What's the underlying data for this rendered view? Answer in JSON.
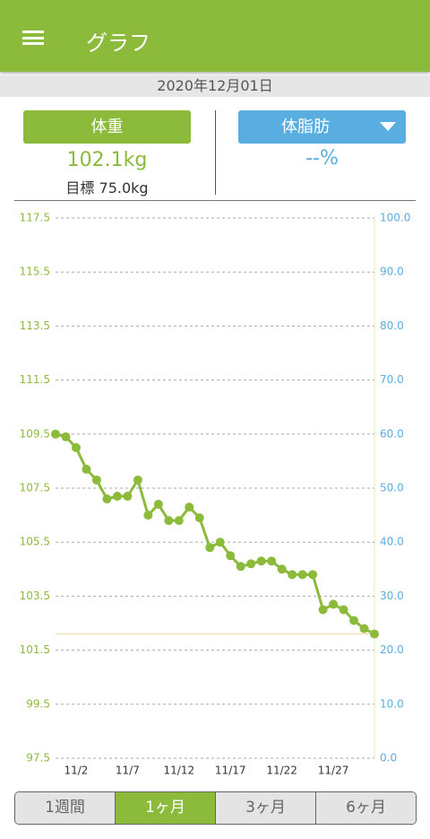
{
  "header": {
    "title": "グラフ"
  },
  "date": "2020年12月01日",
  "cards": [
    {
      "button": "体重",
      "value": "102.1kg",
      "target": "目標 75.0kg"
    },
    {
      "button": "体脂肪",
      "value": "--%"
    }
  ],
  "chart_data": {
    "type": "line",
    "categories": [
      null,
      null,
      "11/2",
      null,
      null,
      null,
      null,
      "11/7",
      null,
      null,
      null,
      null,
      "11/12",
      null,
      null,
      null,
      null,
      "11/17",
      null,
      null,
      null,
      null,
      "11/22",
      null,
      null,
      null,
      null,
      "11/27",
      null,
      null,
      null,
      null
    ],
    "values": [
      109.5,
      109.4,
      109.0,
      108.2,
      107.8,
      107.1,
      107.2,
      107.2,
      107.8,
      106.5,
      106.9,
      106.3,
      106.3,
      106.8,
      106.4,
      105.3,
      105.5,
      105.0,
      104.6,
      104.7,
      104.8,
      104.8,
      104.5,
      104.3,
      104.3,
      104.3,
      103.0,
      103.2,
      103.0,
      102.6,
      102.3,
      102.1
    ],
    "color": "#8cbb3c",
    "ylim": [
      97.5,
      117.5
    ],
    "yticks": [
      97.5,
      99.5,
      101.5,
      103.5,
      105.5,
      107.5,
      109.5,
      111.5,
      113.5,
      115.5,
      117.5
    ],
    "y2lim": [
      0,
      100
    ],
    "y2ticks": [
      {
        "value": 0,
        "label": "0.0"
      },
      {
        "value": 10,
        "label": "10.0"
      },
      {
        "value": 20,
        "label": "20.0"
      },
      {
        "value": 30,
        "label": "30.0"
      },
      {
        "value": 40,
        "label": "40.0"
      },
      {
        "value": 50,
        "label": "50.0"
      },
      {
        "value": 60,
        "label": "60.0"
      },
      {
        "value": 70,
        "label": "70.0"
      },
      {
        "value": 80,
        "label": "80.0"
      },
      {
        "value": 90,
        "label": "90.0"
      },
      {
        "value": 100,
        "label": "100.0"
      }
    ],
    "hline": 102.1,
    "grid": true
  },
  "tabs": [
    "1週間",
    "1ヶ月",
    "3ヶ月",
    "6ヶ月"
  ]
}
